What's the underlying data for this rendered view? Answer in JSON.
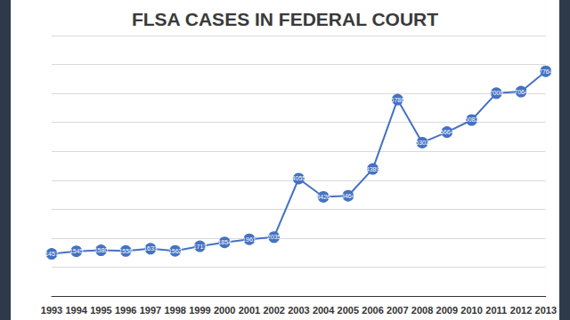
{
  "chart_data": {
    "type": "line",
    "title": "FLSA CASES IN FEDERAL COURT",
    "categories": [
      "1993",
      "1994",
      "1995",
      "1996",
      "1997",
      "1998",
      "1999",
      "2000",
      "2001",
      "2002",
      "2003",
      "2004",
      "2005",
      "2006",
      "2007",
      "2008",
      "2009",
      "2010",
      "2011",
      "2012",
      "2013"
    ],
    "values": [
      1457,
      1545,
      1580,
      1558,
      1633,
      1562,
      1717,
      1854,
      1961,
      2035,
      4055,
      3426,
      3464,
      4389,
      6786,
      5302,
      5664,
      6082,
      7008,
      7064,
      7764
    ],
    "color": "#4472c4",
    "ylim": [
      0,
      9000
    ],
    "yticks": [
      0,
      1000,
      2000,
      3000,
      4000,
      5000,
      6000,
      7000,
      8000,
      9000
    ],
    "grid": true,
    "data_labels": true,
    "tick_labels": "x",
    "marker": "circle"
  }
}
